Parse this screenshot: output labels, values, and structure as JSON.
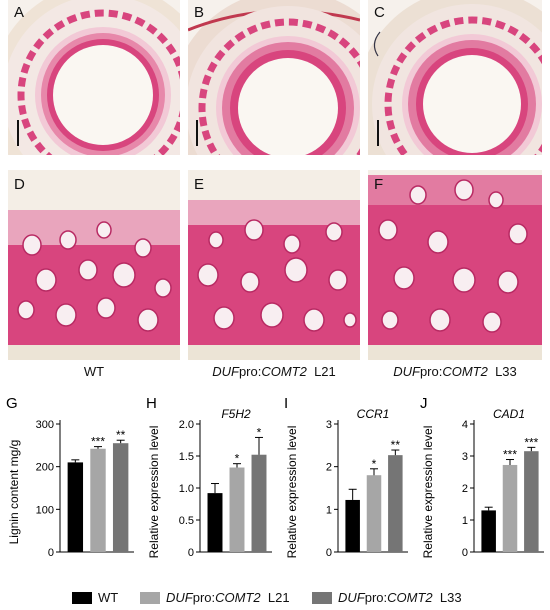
{
  "photo_panels": {
    "top_row": [
      {
        "letter": "A"
      },
      {
        "letter": "B"
      },
      {
        "letter": "C"
      }
    ],
    "bottom_row": [
      {
        "letter": "D"
      },
      {
        "letter": "E"
      },
      {
        "letter": "F"
      }
    ],
    "captions": [
      {
        "text": "WT"
      },
      {
        "prefix": "DUF",
        "mid": "pro:",
        "gene": "COMT2",
        "line": "L21"
      },
      {
        "prefix": "DUF",
        "mid": "pro:",
        "gene": "COMT2",
        "line": "L33"
      }
    ],
    "colors": {
      "stain": "#d8457e",
      "stain_dark": "#b82a63",
      "tissue_bg": "#f4dce3",
      "pith": "#f7f3ee"
    }
  },
  "chart_data": [
    {
      "letter": "G",
      "type": "bar",
      "title": "",
      "ylabel": "Lignin content mg/g",
      "ylim": [
        0,
        300
      ],
      "yticks": [
        0,
        100,
        200,
        300
      ],
      "categories": [
        "WT",
        "DUFpro:COMT2 L21",
        "DUFpro:COMT2 L33"
      ],
      "values": [
        210,
        242,
        255
      ],
      "errors": [
        6,
        5,
        7
      ],
      "significance": [
        "",
        "***",
        "**"
      ]
    },
    {
      "letter": "H",
      "type": "bar",
      "title": "F5H2",
      "ylabel": "Relative expression level",
      "ylim": [
        0,
        2.0
      ],
      "yticks": [
        0,
        0.5,
        1.0,
        1.5,
        2.0
      ],
      "ytick_labels": [
        "0",
        "0.5",
        "1.0",
        "1.5",
        "2.0"
      ],
      "categories": [
        "WT",
        "DUFpro:COMT2 L21",
        "DUFpro:COMT2 L33"
      ],
      "values": [
        0.92,
        1.32,
        1.52
      ],
      "errors": [
        0.15,
        0.06,
        0.27
      ],
      "significance": [
        "",
        "*",
        "*"
      ]
    },
    {
      "letter": "I",
      "type": "bar",
      "title": "CCR1",
      "ylabel": "Relative expression level",
      "ylim": [
        0,
        3
      ],
      "yticks": [
        0,
        1,
        2,
        3
      ],
      "categories": [
        "WT",
        "DUFpro:COMT2 L21",
        "DUFpro:COMT2 L33"
      ],
      "values": [
        1.22,
        1.8,
        2.27
      ],
      "errors": [
        0.25,
        0.15,
        0.12
      ],
      "significance": [
        "",
        "*",
        "**"
      ]
    },
    {
      "letter": "J",
      "type": "bar",
      "title": "CAD1",
      "ylabel": "Relative expression level",
      "ylim": [
        0,
        4
      ],
      "yticks": [
        0,
        1,
        2,
        3,
        4
      ],
      "categories": [
        "WT",
        "DUFpro:COMT2 L21",
        "DUFpro:COMT2 L33"
      ],
      "values": [
        1.3,
        2.72,
        3.15
      ],
      "errors": [
        0.1,
        0.17,
        0.12
      ],
      "significance": [
        "",
        "***",
        "***"
      ]
    }
  ],
  "legend": {
    "items": [
      {
        "label": "WT",
        "color": "#000000"
      },
      {
        "prefix": "DUF",
        "mid": "pro:",
        "gene": "COMT2",
        "line": "L21",
        "color": "#a6a6a6"
      },
      {
        "prefix": "DUF",
        "mid": "pro:",
        "gene": "COMT2",
        "line": "L33",
        "color": "#757575"
      }
    ]
  },
  "bar_colors": [
    "#000000",
    "#a6a6a6",
    "#757575"
  ]
}
